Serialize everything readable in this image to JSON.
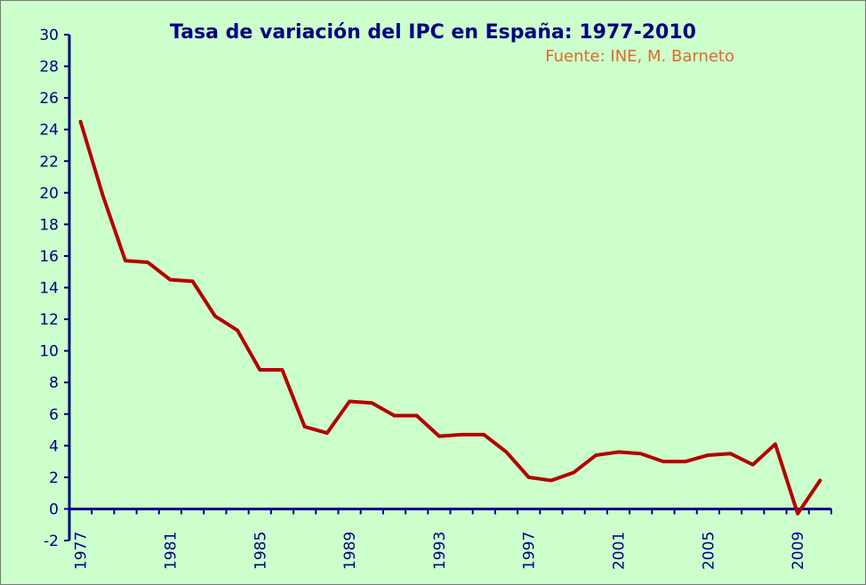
{
  "chart_data": {
    "type": "line",
    "title": "Tasa de variación del IPC en España: 1977-2010",
    "subtitle": "Fuente: INE, M. Barneto",
    "xlabel": "",
    "ylabel": "",
    "ylim": [
      -2,
      30
    ],
    "yticks": [
      "-2",
      "0",
      "2",
      "4",
      "6",
      "8",
      "10",
      "12",
      "14",
      "16",
      "18",
      "20",
      "22",
      "24",
      "26",
      "28",
      "30"
    ],
    "xtick_labels": [
      "1977",
      "1981",
      "1985",
      "1989",
      "1993",
      "1997",
      "2001",
      "2005",
      "2009"
    ],
    "grid": false,
    "line_color": "#b30000",
    "axis_color": "#000080",
    "background_color": "#ccffcc",
    "x": [
      1977,
      1978,
      1979,
      1980,
      1981,
      1982,
      1983,
      1984,
      1985,
      1986,
      1987,
      1988,
      1989,
      1990,
      1991,
      1992,
      1993,
      1994,
      1995,
      1996,
      1997,
      1998,
      1999,
      2000,
      2001,
      2002,
      2003,
      2004,
      2005,
      2006,
      2007,
      2008,
      2009,
      2010
    ],
    "series": [
      {
        "values": [
          24.5,
          19.8,
          15.7,
          15.6,
          14.5,
          14.4,
          12.2,
          11.3,
          8.8,
          8.8,
          5.2,
          4.8,
          6.8,
          6.7,
          5.9,
          5.9,
          4.6,
          4.7,
          4.7,
          3.6,
          2.0,
          1.8,
          2.3,
          3.4,
          3.6,
          3.5,
          3.0,
          3.0,
          3.4,
          3.5,
          2.8,
          4.1,
          -0.3,
          1.8
        ]
      }
    ]
  }
}
